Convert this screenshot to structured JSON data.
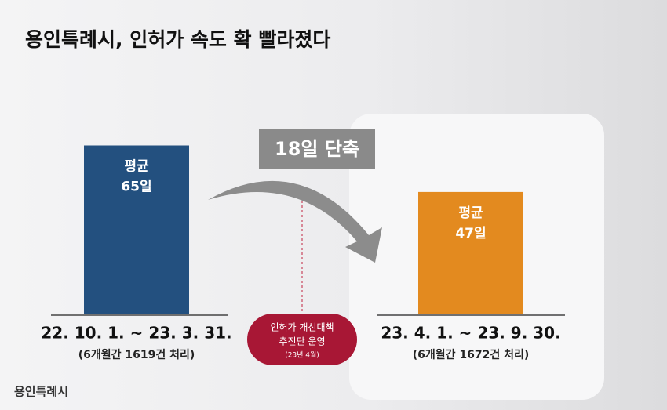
{
  "chart_data": {
    "type": "bar",
    "title": "용인특례시, 인허가 속도 확 빨라졌다",
    "categories": [
      "22. 10. 1. ~ 23. 3. 31.",
      "23. 4. 1. ~ 23. 9. 30."
    ],
    "category_notes": [
      "(6개월간 1619건 처리)",
      "(6개월간 1672건 처리)"
    ],
    "bar_caption": "평균",
    "values": [
      65,
      47
    ],
    "value_labels": [
      "65일",
      "47일"
    ],
    "colors": [
      "#23507f",
      "#e38a1f"
    ],
    "annotation": "18일 단축",
    "milestone": [
      "인허가 개선대책",
      "추진단 운영",
      "(23년 4월)"
    ],
    "logo": "용인특례시"
  }
}
